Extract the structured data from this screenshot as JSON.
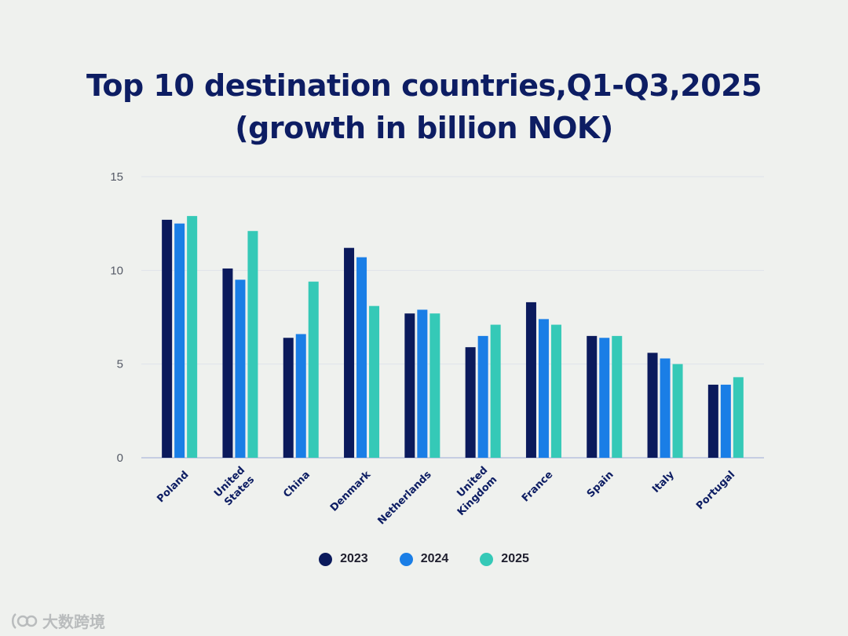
{
  "chart_data": {
    "type": "bar",
    "title_lines": [
      "Top 10 destination countries,Q1-Q3,2025",
      "(growth in billion NOK)"
    ],
    "categories": [
      "Poland",
      "United States",
      "China",
      "Denmark",
      "Netherlands",
      "United Kingdom",
      "France",
      "Spain",
      "Italy",
      "Portugal"
    ],
    "category_lines": [
      [
        "Poland"
      ],
      [
        "United",
        "States"
      ],
      [
        "China"
      ],
      [
        "Denmark"
      ],
      [
        "Netherlands"
      ],
      [
        "United",
        "Kingdom"
      ],
      [
        "France"
      ],
      [
        "Spain"
      ],
      [
        "Italy"
      ],
      [
        "Portugal"
      ]
    ],
    "series": [
      {
        "name": "2023",
        "color": "#0b1a5c",
        "values": [
          12.7,
          10.1,
          6.4,
          11.2,
          7.7,
          5.9,
          8.3,
          6.5,
          5.6,
          3.9
        ]
      },
      {
        "name": "2024",
        "color": "#1a7ee6",
        "values": [
          12.5,
          9.5,
          6.6,
          10.7,
          7.9,
          6.5,
          7.4,
          6.4,
          5.3,
          3.9
        ]
      },
      {
        "name": "2025",
        "color": "#35c9b7",
        "values": [
          12.9,
          12.1,
          9.4,
          8.1,
          7.7,
          7.1,
          7.1,
          6.5,
          5.0,
          4.3
        ]
      }
    ],
    "yticks": [
      0,
      5,
      10,
      15
    ],
    "ylim": [
      0,
      15
    ],
    "xlabel": "",
    "ylabel": "",
    "grid": true,
    "legend_position": "bottom-center"
  },
  "watermark": {
    "text": "大数跨境",
    "icon": "logo-icon"
  }
}
